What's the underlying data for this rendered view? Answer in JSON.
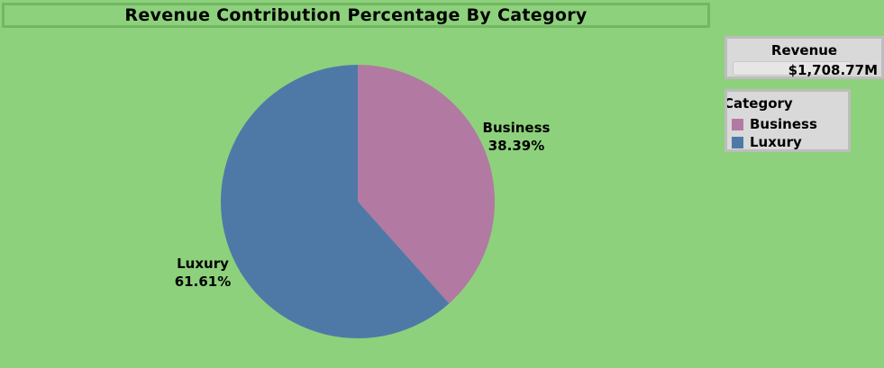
{
  "chart_data": {
    "type": "pie",
    "title": "Revenue Contribution Percentage By Category",
    "slices": [
      {
        "label": "Business",
        "value": 38.39,
        "value_label": "38.39%",
        "color": "#b279a2"
      },
      {
        "label": "Luxury",
        "value": 61.61,
        "value_label": "61.61%",
        "color": "#4e79a7"
      }
    ],
    "legend_title": "Category",
    "legend_position": "right"
  },
  "revenue_card": {
    "title": "Revenue",
    "value": "$1,708.77M"
  },
  "colors": {
    "background": "#8dd17c",
    "business": "#b279a2",
    "luxury": "#4e79a7"
  }
}
